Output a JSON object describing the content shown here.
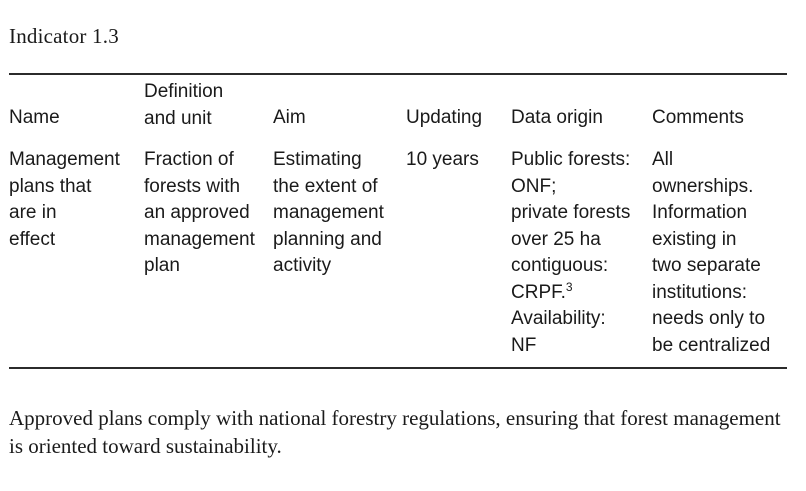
{
  "indicator_title": "Indicator 1.3",
  "table": {
    "headers": {
      "name": "Name",
      "definition_line1": "Definition",
      "definition_line2": "and unit",
      "aim": "Aim",
      "updating": "Updating",
      "data_origin": "Data origin",
      "comments": "Comments"
    },
    "row": {
      "name": [
        "Management",
        "plans that",
        "are in",
        "effect"
      ],
      "definition": [
        "Fraction of",
        "forests with",
        "an approved",
        "management",
        "plan"
      ],
      "aim": [
        "Estimating",
        "the extent of",
        "management",
        "planning and",
        "activity"
      ],
      "updating": [
        "10 years"
      ],
      "data_origin": [
        "Public forests:",
        "ONF;",
        "private forests",
        "over 25 ha",
        "contiguous:",
        "CRPF.",
        "Availability:",
        "NF"
      ],
      "data_origin_footnote": "3",
      "comments": [
        "All",
        "ownerships.",
        "Information",
        "existing in",
        "two separate",
        "institutions:",
        "needs only to",
        "be centralized"
      ]
    }
  },
  "note": "Approved plans comply with national forestry regulations, ensuring that forest management is oriented toward sustainability."
}
